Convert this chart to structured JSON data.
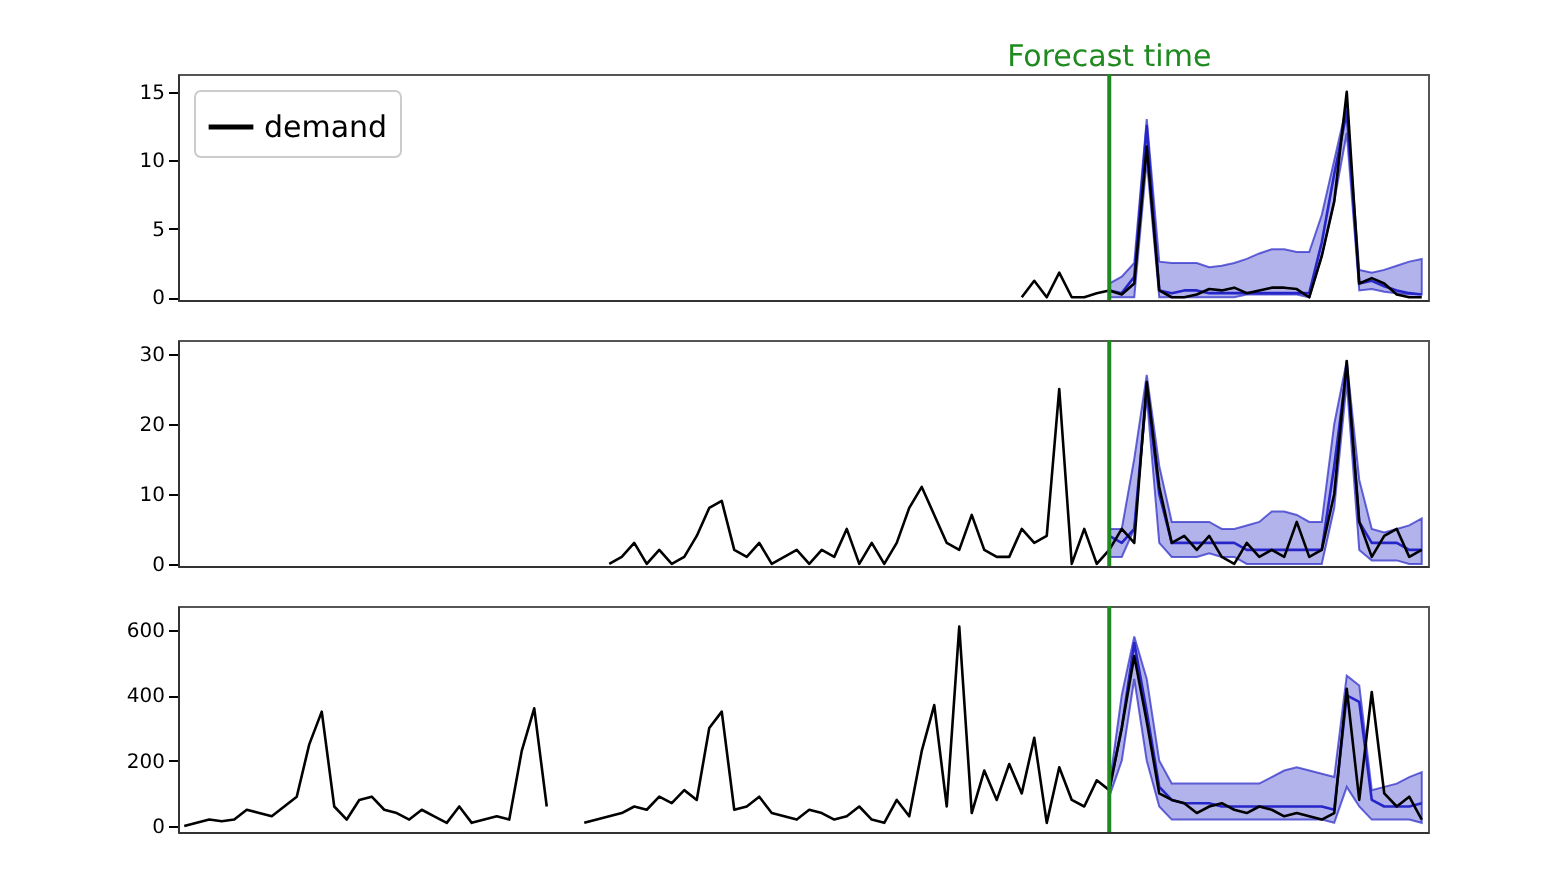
{
  "chart_data": [
    {
      "type": "line",
      "categories": [
        null,
        null,
        null,
        null,
        null,
        null,
        null,
        null,
        null,
        null,
        null,
        null,
        null,
        null,
        null,
        null,
        null,
        null,
        null,
        null,
        null,
        null,
        null,
        null,
        null,
        null,
        null,
        null,
        null,
        null,
        null,
        null,
        null,
        null,
        null,
        null,
        null,
        null,
        null,
        null,
        null,
        null,
        null,
        null,
        null,
        null,
        null,
        null,
        null,
        null,
        null,
        null,
        null,
        null,
        null,
        null,
        null,
        null,
        null,
        null,
        null,
        null,
        null,
        null,
        null,
        null,
        null,
        null,
        null,
        null,
        null,
        null,
        null,
        null,
        null,
        null,
        null,
        null,
        null,
        null,
        null,
        null,
        null,
        null,
        null,
        null,
        null,
        null,
        null,
        null,
        null,
        null,
        null,
        null,
        null,
        null,
        null,
        null,
        null,
        null
      ],
      "ylim": [
        -0.2,
        16.3
      ],
      "yticks": [
        0,
        5,
        10,
        15
      ],
      "tick_labels": "y",
      "grid": false,
      "legend": "top left",
      "line_style": "solid",
      "marker": "none",
      "ref_lines": [
        {
          "axis": "x",
          "label": "Forecast time",
          "color": "#1f8a1f"
        }
      ],
      "series": [
        {
          "name": "demand",
          "color": "#000000",
          "values": [
            null,
            null,
            null,
            null,
            null,
            null,
            null,
            null,
            null,
            null,
            null,
            null,
            null,
            null,
            null,
            null,
            null,
            null,
            null,
            null,
            null,
            null,
            null,
            null,
            null,
            null,
            null,
            null,
            null,
            null,
            null,
            null,
            null,
            null,
            null,
            null,
            null,
            null,
            null,
            null,
            null,
            null,
            null,
            null,
            null,
            null,
            null,
            null,
            null,
            null,
            null,
            null,
            null,
            null,
            null,
            null,
            null,
            null,
            null,
            null,
            null,
            null,
            null,
            null,
            null,
            null,
            null,
            0,
            1.2,
            0,
            1.8,
            0,
            0,
            0.3,
            0.5,
            0.2,
            1,
            11,
            0.5,
            0,
            0,
            0.2,
            0.6,
            0.5,
            0.7,
            0.3,
            0.5,
            0.7,
            0.7,
            0.6,
            0,
            3,
            7,
            15,
            1,
            1.4,
            1,
            0.2,
            0,
            0
          ]
        },
        {
          "color": "#2626c8",
          "values": [
            null,
            null,
            null,
            null,
            null,
            null,
            null,
            null,
            null,
            null,
            null,
            null,
            null,
            null,
            null,
            null,
            null,
            null,
            null,
            null,
            null,
            null,
            null,
            null,
            null,
            null,
            null,
            null,
            null,
            null,
            null,
            null,
            null,
            null,
            null,
            null,
            null,
            null,
            null,
            null,
            null,
            null,
            null,
            null,
            null,
            null,
            null,
            null,
            null,
            null,
            null,
            null,
            null,
            null,
            null,
            null,
            null,
            null,
            null,
            null,
            null,
            null,
            null,
            null,
            null,
            null,
            null,
            null,
            null,
            null,
            null,
            null,
            null,
            null,
            0.5,
            0.3,
            1.5,
            12.5,
            0.5,
            0.3,
            0.5,
            0.5,
            0.3,
            0.3,
            0.3,
            0.3,
            0.3,
            0.3,
            0.3,
            0.3,
            0.3,
            4,
            9,
            13.5,
            1,
            1.2,
            0.8,
            0.5,
            0.3,
            0.2
          ],
          "lower": [
            null,
            null,
            null,
            null,
            null,
            null,
            null,
            null,
            null,
            null,
            null,
            null,
            null,
            null,
            null,
            null,
            null,
            null,
            null,
            null,
            null,
            null,
            null,
            null,
            null,
            null,
            null,
            null,
            null,
            null,
            null,
            null,
            null,
            null,
            null,
            null,
            null,
            null,
            null,
            null,
            null,
            null,
            null,
            null,
            null,
            null,
            null,
            null,
            null,
            null,
            null,
            null,
            null,
            null,
            null,
            null,
            null,
            null,
            null,
            null,
            null,
            null,
            null,
            null,
            null,
            null,
            null,
            null,
            null,
            null,
            null,
            null,
            null,
            null,
            0,
            0,
            0,
            10,
            0,
            0,
            0,
            0,
            0,
            0,
            0,
            0.2,
            0.2,
            0.2,
            0.2,
            0.2,
            0,
            3,
            7,
            12,
            0.5,
            0.6,
            0.4,
            0.3,
            0.2,
            0.2
          ],
          "upper": [
            null,
            null,
            null,
            null,
            null,
            null,
            null,
            null,
            null,
            null,
            null,
            null,
            null,
            null,
            null,
            null,
            null,
            null,
            null,
            null,
            null,
            null,
            null,
            null,
            null,
            null,
            null,
            null,
            null,
            null,
            null,
            null,
            null,
            null,
            null,
            null,
            null,
            null,
            null,
            null,
            null,
            null,
            null,
            null,
            null,
            null,
            null,
            null,
            null,
            null,
            null,
            null,
            null,
            null,
            null,
            null,
            null,
            null,
            null,
            null,
            null,
            null,
            null,
            null,
            null,
            null,
            null,
            null,
            null,
            null,
            null,
            null,
            null,
            null,
            1,
            1.5,
            2.5,
            13,
            2.6,
            2.5,
            2.5,
            2.5,
            2.2,
            2.3,
            2.5,
            2.8,
            3.2,
            3.5,
            3.5,
            3.3,
            3.3,
            6,
            10,
            14,
            2,
            1.8,
            2,
            2.3,
            2.6,
            2.8
          ]
        }
      ]
    },
    {
      "type": "line",
      "categories": [
        null,
        null,
        null,
        null,
        null,
        null,
        null,
        null,
        null,
        null,
        null,
        null,
        null,
        null,
        null,
        null,
        null,
        null,
        null,
        null,
        null,
        null,
        null,
        null,
        null,
        null,
        null,
        null,
        null,
        null,
        null,
        null,
        null,
        null,
        null,
        null,
        null,
        null,
        null,
        null,
        null,
        null,
        null,
        null,
        null,
        null,
        null,
        null,
        null,
        null,
        null,
        null,
        null,
        null,
        null,
        null,
        null,
        null,
        null,
        null,
        null,
        null,
        null,
        null,
        null,
        null,
        null,
        null,
        null,
        null,
        null,
        null,
        null,
        null,
        null,
        null,
        null,
        null,
        null,
        null,
        null,
        null,
        null,
        null,
        null,
        null,
        null,
        null,
        null,
        null,
        null,
        null,
        null,
        null,
        null,
        null,
        null,
        null,
        null,
        null
      ],
      "ylim": [
        -0.3,
        32
      ],
      "yticks": [
        0,
        10,
        20,
        30
      ],
      "tick_labels": "y",
      "grid": false,
      "line_style": "solid",
      "marker": "none",
      "ref_lines": [
        {
          "axis": "x",
          "color": "#1f8a1f"
        }
      ],
      "series": [
        {
          "color": "#000000",
          "values": [
            null,
            null,
            null,
            null,
            null,
            null,
            null,
            null,
            null,
            null,
            null,
            null,
            null,
            null,
            null,
            null,
            null,
            null,
            null,
            null,
            null,
            null,
            null,
            null,
            null,
            null,
            null,
            null,
            null,
            null,
            null,
            null,
            null,
            null,
            0,
            1,
            3,
            0,
            2,
            0,
            1,
            4,
            8,
            9,
            2,
            1,
            3,
            0,
            1,
            2,
            0,
            2,
            1,
            5,
            0,
            3,
            0,
            3,
            8,
            11,
            7,
            3,
            2,
            7,
            2,
            1,
            1,
            5,
            3,
            4,
            25,
            0,
            5,
            0,
            2,
            5,
            3,
            26,
            11,
            3,
            4,
            2,
            4,
            1,
            0,
            3,
            1,
            2,
            1,
            6,
            1,
            2,
            10,
            29,
            6,
            1,
            4,
            5,
            1,
            2
          ]
        },
        {
          "color": "#2626c8",
          "values": [
            null,
            null,
            null,
            null,
            null,
            null,
            null,
            null,
            null,
            null,
            null,
            null,
            null,
            null,
            null,
            null,
            null,
            null,
            null,
            null,
            null,
            null,
            null,
            null,
            null,
            null,
            null,
            null,
            null,
            null,
            null,
            null,
            null,
            null,
            null,
            null,
            null,
            null,
            null,
            null,
            null,
            null,
            null,
            null,
            null,
            null,
            null,
            null,
            null,
            null,
            null,
            null,
            null,
            null,
            null,
            null,
            null,
            null,
            null,
            null,
            null,
            null,
            null,
            null,
            null,
            null,
            null,
            null,
            null,
            null,
            null,
            null,
            null,
            null,
            4,
            3,
            5,
            25,
            10,
            3,
            3,
            3,
            3,
            3,
            3,
            2,
            2,
            2,
            2,
            2,
            2,
            2,
            14,
            28,
            6,
            3,
            3,
            3,
            2,
            2
          ],
          "lower": [
            null,
            null,
            null,
            null,
            null,
            null,
            null,
            null,
            null,
            null,
            null,
            null,
            null,
            null,
            null,
            null,
            null,
            null,
            null,
            null,
            null,
            null,
            null,
            null,
            null,
            null,
            null,
            null,
            null,
            null,
            null,
            null,
            null,
            null,
            null,
            null,
            null,
            null,
            null,
            null,
            null,
            null,
            null,
            null,
            null,
            null,
            null,
            null,
            null,
            null,
            null,
            null,
            null,
            null,
            null,
            null,
            null,
            null,
            null,
            null,
            null,
            null,
            null,
            null,
            null,
            null,
            null,
            null,
            null,
            null,
            null,
            null,
            null,
            null,
            1,
            1,
            5,
            24,
            3,
            1,
            1,
            1,
            1.5,
            1,
            1,
            0,
            0,
            0,
            0,
            0,
            0,
            0,
            8,
            26,
            2,
            0.5,
            0.5,
            0.5,
            0,
            0
          ],
          "upper": [
            null,
            null,
            null,
            null,
            null,
            null,
            null,
            null,
            null,
            null,
            null,
            null,
            null,
            null,
            null,
            null,
            null,
            null,
            null,
            null,
            null,
            null,
            null,
            null,
            null,
            null,
            null,
            null,
            null,
            null,
            null,
            null,
            null,
            null,
            null,
            null,
            null,
            null,
            null,
            null,
            null,
            null,
            null,
            null,
            null,
            null,
            null,
            null,
            null,
            null,
            null,
            null,
            null,
            null,
            null,
            null,
            null,
            null,
            null,
            null,
            null,
            null,
            null,
            null,
            null,
            null,
            null,
            null,
            null,
            null,
            null,
            null,
            null,
            null,
            5,
            5,
            15,
            27,
            14,
            6,
            6,
            6,
            6,
            5,
            5,
            5.5,
            6,
            7.5,
            7.5,
            7,
            6,
            6,
            20,
            29,
            12,
            5,
            4.5,
            5,
            5.5,
            6.5
          ]
        }
      ]
    },
    {
      "type": "line",
      "categories": [
        null,
        null,
        null,
        null,
        null,
        null,
        null,
        null,
        null,
        null,
        null,
        null,
        null,
        null,
        null,
        null,
        null,
        null,
        null,
        null,
        null,
        null,
        null,
        null,
        null,
        null,
        null,
        null,
        null,
        null,
        null,
        null,
        null,
        null,
        null,
        null,
        null,
        null,
        null,
        null,
        null,
        null,
        null,
        null,
        null,
        null,
        null,
        null,
        null,
        null,
        null,
        null,
        null,
        null,
        null,
        null,
        null,
        null,
        null,
        null,
        null,
        null,
        null,
        null,
        null,
        null,
        null,
        null,
        null,
        null,
        null,
        null,
        null,
        null,
        null,
        null,
        null,
        null,
        null,
        null,
        null,
        null,
        null,
        null,
        null,
        null,
        null,
        null,
        null,
        null,
        null,
        null,
        null,
        null,
        null,
        null,
        null,
        null,
        null,
        null
      ],
      "ylim": [
        -18,
        673
      ],
      "yticks": [
        0,
        200,
        400,
        600
      ],
      "tick_labels": "y",
      "grid": false,
      "line_style": "solid",
      "marker": "none",
      "ref_lines": [
        {
          "axis": "x",
          "color": "#1f8a1f"
        }
      ],
      "series": [
        {
          "color": "#000000",
          "values": [
            0,
            10,
            20,
            15,
            20,
            50,
            40,
            30,
            60,
            90,
            250,
            350,
            60,
            20,
            80,
            90,
            50,
            40,
            20,
            50,
            30,
            10,
            60,
            10,
            20,
            30,
            20,
            230,
            360,
            60,
            null,
            null,
            10,
            20,
            30,
            40,
            60,
            50,
            90,
            70,
            110,
            80,
            300,
            350,
            50,
            60,
            90,
            40,
            30,
            20,
            50,
            40,
            20,
            30,
            60,
            20,
            10,
            80,
            30,
            230,
            370,
            60,
            610,
            40,
            170,
            80,
            190,
            100,
            270,
            10,
            180,
            80,
            60,
            140,
            110,
            300,
            520,
            320,
            100,
            80,
            70,
            40,
            60,
            70,
            50,
            40,
            60,
            50,
            30,
            40,
            30,
            20,
            40,
            420,
            80,
            410,
            100,
            60,
            90,
            20
          ]
        },
        {
          "color": "#2626c8",
          "values": [
            null,
            null,
            null,
            null,
            null,
            null,
            null,
            null,
            null,
            null,
            null,
            null,
            null,
            null,
            null,
            null,
            null,
            null,
            null,
            null,
            null,
            null,
            null,
            null,
            null,
            null,
            null,
            null,
            null,
            null,
            null,
            null,
            null,
            null,
            null,
            null,
            null,
            null,
            null,
            null,
            null,
            null,
            null,
            null,
            null,
            null,
            null,
            null,
            null,
            null,
            null,
            null,
            null,
            null,
            null,
            null,
            null,
            null,
            null,
            null,
            null,
            null,
            null,
            null,
            null,
            null,
            null,
            null,
            null,
            null,
            null,
            null,
            null,
            null,
            110,
            300,
            560,
            350,
            120,
            80,
            70,
            70,
            70,
            60,
            60,
            60,
            60,
            60,
            60,
            60,
            60,
            60,
            50,
            400,
            380,
            80,
            60,
            60,
            60,
            70
          ],
          "lower": [
            null,
            null,
            null,
            null,
            null,
            null,
            null,
            null,
            null,
            null,
            null,
            null,
            null,
            null,
            null,
            null,
            null,
            null,
            null,
            null,
            null,
            null,
            null,
            null,
            null,
            null,
            null,
            null,
            null,
            null,
            null,
            null,
            null,
            null,
            null,
            null,
            null,
            null,
            null,
            null,
            null,
            null,
            null,
            null,
            null,
            null,
            null,
            null,
            null,
            null,
            null,
            null,
            null,
            null,
            null,
            null,
            null,
            null,
            null,
            null,
            null,
            null,
            null,
            null,
            null,
            null,
            null,
            null,
            null,
            null,
            null,
            null,
            null,
            null,
            90,
            200,
            450,
            200,
            60,
            20,
            20,
            20,
            20,
            20,
            20,
            20,
            20,
            20,
            20,
            20,
            20,
            20,
            10,
            120,
            60,
            20,
            20,
            20,
            20,
            10
          ],
          "upper": [
            null,
            null,
            null,
            null,
            null,
            null,
            null,
            null,
            null,
            null,
            null,
            null,
            null,
            null,
            null,
            null,
            null,
            null,
            null,
            null,
            null,
            null,
            null,
            null,
            null,
            null,
            null,
            null,
            null,
            null,
            null,
            null,
            null,
            null,
            null,
            null,
            null,
            null,
            null,
            null,
            null,
            null,
            null,
            null,
            null,
            null,
            null,
            null,
            null,
            null,
            null,
            null,
            null,
            null,
            null,
            null,
            null,
            null,
            null,
            null,
            null,
            null,
            null,
            null,
            null,
            null,
            null,
            null,
            null,
            null,
            null,
            null,
            null,
            null,
            120,
            400,
            580,
            450,
            200,
            130,
            130,
            130,
            130,
            130,
            130,
            130,
            130,
            150,
            170,
            180,
            170,
            160,
            150,
            460,
            430,
            110,
            120,
            130,
            150,
            165
          ]
        }
      ]
    }
  ]
}
